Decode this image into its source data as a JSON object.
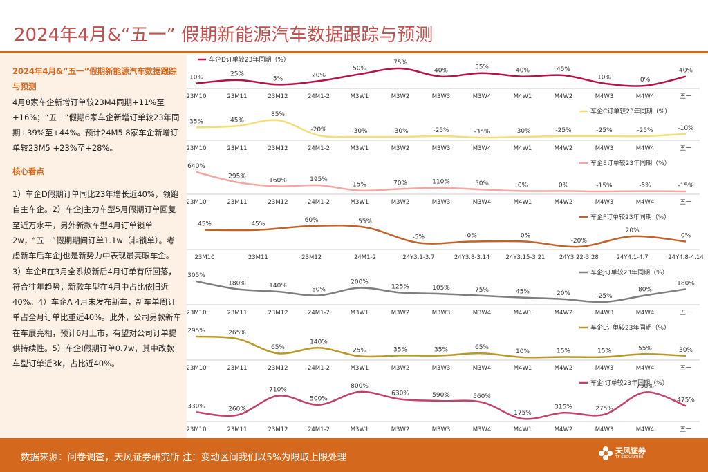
{
  "title": "2024年4月&“五一” 假期新能源汽车数据跟踪与预测",
  "summary": {
    "heading": "2024年4月&“五一”假期新能源汽车数据跟踪与预测",
    "text": "4月8家车企新增订单较23M4同期+11%至+16%；“五一”假期6家车企新增订单较23年同期+39%至+44%。预计24M5 8家车企新增订单较23M5 +23%至+28%。",
    "core_heading": "核心看点",
    "core_text": "1）车企D假期订单同比23年增长近40%，领跑自主车企。2）车企J主力车型5月假期订单回复至近万水平，另外新款车型4月订单锁单2w，“五一”假期期间订单1.1w（非锁单）。考虑新车后车企J也是新势力中表现最亮眼车企。3）车企B在3月全系焕新后4月订单有所回落，符合往年趋势；新款车型在4月中占比依旧近40%。4）车企A 4月末发布新车，新车单周订单占全月订单比重近40%。此外，公司另款新车在车展亮相，预计6月上市，有望对公司订单提供持续性。5）车企I假期订单0.7w，其中改款车型订单近3k，占比近40%。"
  },
  "chart_data": [
    {
      "type": "line",
      "color": "#b5144a",
      "legend": "车企D订单较23年同期（%）",
      "legend_pos": "top-left",
      "categories": [
        "23M10",
        "23M11",
        "23M12",
        "24M1-2",
        "M3W1",
        "M3W2",
        "M3W3",
        "M3W4",
        "M4W1",
        "M4W2",
        "M4W3",
        "M4W4",
        "五一"
      ],
      "values": [
        10,
        25,
        5,
        20,
        50,
        75,
        40,
        55,
        40,
        45,
        10,
        0,
        40
      ],
      "labels": [
        "10%",
        "25%",
        "5%",
        "20%",
        "50%",
        "75%",
        "40%",
        "55%",
        "40%",
        "45%",
        "10%",
        "0%",
        "40%"
      ]
    },
    {
      "type": "line",
      "color": "#f3df7a",
      "legend": "车企C订单较23年同期（%）",
      "legend_pos": "right",
      "categories": [
        "23M10",
        "23M11",
        "23M12",
        "24M1-2",
        "M3W1",
        "M3W2",
        "M3W3",
        "M3W4",
        "M4W1",
        "M4W2",
        "M4W3",
        "M4W4",
        "五一"
      ],
      "values": [
        35,
        45,
        85,
        -20,
        -30,
        -30,
        -25,
        -35,
        -30,
        -25,
        -25,
        -25,
        -10
      ],
      "labels": [
        "35%",
        "45%",
        "85%",
        "-20%",
        "-30%",
        "-30%",
        "-25%",
        "-35%",
        "-30%",
        "-25%",
        "-25%",
        "-25%",
        "-10%"
      ]
    },
    {
      "type": "line",
      "color": "#f2a7a0",
      "legend": "车企E订单较23年同期（%）",
      "legend_pos": "right",
      "categories": [
        "23M10",
        "23M11",
        "23M12",
        "24M1-2",
        "M3W1",
        "M3W2",
        "M3W3",
        "M3W4",
        "M4W1",
        "M4W2",
        "M4W3",
        "M4W4",
        "五一"
      ],
      "values": [
        640,
        295,
        160,
        195,
        15,
        70,
        110,
        50,
        0,
        0,
        -15,
        -5,
        -15
      ],
      "labels": [
        "640%",
        "295%",
        "160%",
        "195%",
        "15%",
        "70%",
        "110%",
        "50%",
        "0%",
        "0%",
        "-15%",
        "-5%",
        "-15%"
      ]
    },
    {
      "type": "line",
      "color": "#c0622b",
      "legend": "车企F订单较23年同期（%）",
      "legend_pos": "right",
      "categories": [
        "23M10",
        "23M11",
        "23M12",
        "24M1-2",
        "24Y3.1-3.7",
        "24Y3.8-3.14",
        "24Y3.15-3.21",
        "24Y3.22-3.28",
        "24Y4.1-4.7",
        "24Y4.8-4.14"
      ],
      "values": [
        45,
        45,
        60,
        55,
        -5,
        0,
        0,
        -20,
        20,
        0
      ],
      "labels": [
        "45%",
        "45%",
        "60%",
        "55%",
        "-5%",
        "0%",
        "0%",
        "-20%",
        "20%",
        "0%"
      ]
    },
    {
      "type": "line",
      "color": "#7f7f7f",
      "legend": "车企J订单较23年同期（%）",
      "legend_pos": "right",
      "categories": [
        "23M10",
        "23M11",
        "23M12",
        "24M1-2",
        "M3W1",
        "M3W2",
        "M3W3",
        "M3W4",
        "M4W1",
        "M4W2",
        "M4W3",
        "M4W4",
        "五一"
      ],
      "values": [
        305,
        180,
        140,
        80,
        200,
        125,
        105,
        75,
        45,
        20,
        -25,
        80,
        180
      ],
      "labels": [
        "305%",
        "180%",
        "140%",
        "80%",
        "200%",
        "125%",
        "105%",
        "75%",
        "45%",
        "20%",
        "-25%",
        "80%",
        "180%"
      ]
    },
    {
      "type": "line",
      "color": "#b8982a",
      "legend": "车企L订单较23年同期（%）",
      "legend_pos": "right",
      "categories": [
        "23M10",
        "23M11",
        "23M12",
        "24M1-2",
        "M3W1",
        "M3W2",
        "M3W3",
        "M3W4",
        "M4W1",
        "M4W2",
        "M4W3",
        "M4W4",
        "五一"
      ],
      "values": [
        295,
        265,
        65,
        140,
        25,
        35,
        35,
        65,
        10,
        15,
        15,
        55,
        30
      ],
      "labels": [
        "295%",
        "265%",
        "65%",
        "140%",
        "25%",
        "35%",
        "35%",
        "65%",
        "10%",
        "15%",
        "15%",
        "55%",
        "30%"
      ]
    },
    {
      "type": "line",
      "color": "#c2416e",
      "legend": "车企I订单较23年同期（%）",
      "legend_pos": "right",
      "categories": [
        "23M10",
        "23M11",
        "23M12",
        "24M1-2",
        "M3W1",
        "M3W2",
        "M3W3",
        "M3W4",
        "M4W1",
        "M4W2",
        "M4W3",
        "M4W4",
        "五一"
      ],
      "values": [
        330,
        260,
        710,
        500,
        800,
        630,
        590,
        560,
        175,
        315,
        275,
        790,
        475
      ],
      "labels": [
        "330%",
        "260%",
        "710%",
        "500%",
        "800%",
        "630%",
        "590%",
        "560%",
        "175%",
        "315%",
        "275%",
        "790%",
        "475%"
      ]
    }
  ],
  "footer": {
    "source": "数据来源：问卷调查，天风证券研究所 注：变动区间我们以5%为限取上限处理",
    "logo_name": "天风证券",
    "logo_sub": "TF SECURITIES"
  }
}
